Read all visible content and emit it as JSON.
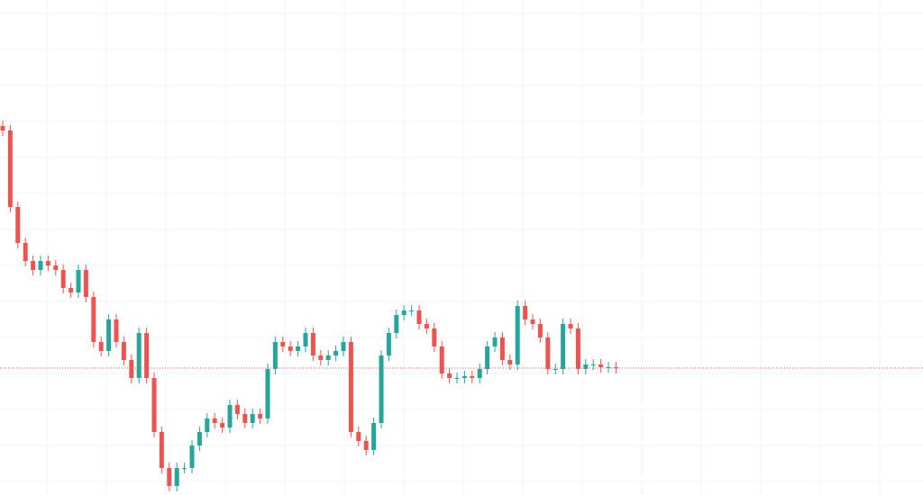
{
  "chart_data": {
    "type": "candlestick",
    "up_color": "#26a69a",
    "down_color": "#ef5350",
    "ylim": [
      0,
      550
    ],
    "open": [
      410,
      405,
      320,
      280,
      260,
      250,
      260,
      255,
      250,
      230,
      225,
      250,
      220,
      170,
      160,
      195,
      170,
      150,
      130,
      180,
      130,
      70,
      30,
      10,
      30,
      30,
      55,
      70,
      85,
      80,
      75,
      100,
      90,
      80,
      90,
      85,
      140,
      170,
      165,
      160,
      165,
      180,
      155,
      150,
      155,
      160,
      170,
      70,
      60,
      50,
      80,
      155,
      180,
      200,
      205,
      205,
      190,
      185,
      165,
      135,
      130,
      130,
      132,
      130,
      140,
      165,
      175,
      150,
      145,
      210,
      195,
      190,
      175,
      140,
      140,
      190,
      185,
      140,
      145,
      145,
      142,
      142
    ],
    "high": [
      416,
      411,
      326,
      286,
      266,
      266,
      266,
      261,
      256,
      236,
      256,
      256,
      226,
      176,
      201,
      201,
      176,
      156,
      186,
      186,
      136,
      76,
      36,
      36,
      36,
      61,
      76,
      91,
      91,
      86,
      106,
      106,
      96,
      96,
      96,
      146,
      176,
      176,
      171,
      171,
      186,
      186,
      161,
      161,
      166,
      176,
      176,
      76,
      66,
      86,
      161,
      186,
      206,
      211,
      211,
      211,
      196,
      191,
      171,
      141,
      136,
      138,
      138,
      146,
      171,
      181,
      181,
      156,
      216,
      216,
      201,
      196,
      181,
      146,
      196,
      196,
      191,
      151,
      151,
      151,
      148,
      148
    ],
    "low": [
      399,
      314,
      274,
      254,
      244,
      244,
      249,
      244,
      224,
      219,
      219,
      214,
      164,
      154,
      154,
      164,
      144,
      124,
      124,
      124,
      64,
      24,
      4,
      4,
      24,
      24,
      49,
      64,
      74,
      69,
      69,
      84,
      74,
      74,
      79,
      79,
      134,
      159,
      154,
      154,
      159,
      149,
      144,
      144,
      149,
      154,
      64,
      54,
      44,
      44,
      74,
      149,
      174,
      194,
      199,
      184,
      179,
      159,
      129,
      124,
      124,
      124,
      124,
      124,
      134,
      159,
      144,
      139,
      139,
      189,
      184,
      169,
      134,
      134,
      134,
      179,
      134,
      134,
      139,
      136,
      136,
      135
    ],
    "close": [
      405,
      320,
      280,
      260,
      250,
      260,
      255,
      250,
      230,
      225,
      250,
      220,
      170,
      160,
      195,
      170,
      150,
      130,
      180,
      130,
      70,
      30,
      10,
      30,
      30,
      55,
      70,
      85,
      80,
      75,
      100,
      90,
      80,
      90,
      85,
      140,
      170,
      165,
      160,
      165,
      180,
      155,
      150,
      155,
      160,
      170,
      70,
      60,
      50,
      80,
      155,
      180,
      200,
      205,
      205,
      190,
      185,
      165,
      135,
      130,
      130,
      132,
      130,
      140,
      165,
      175,
      150,
      145,
      210,
      195,
      190,
      175,
      140,
      140,
      190,
      185,
      140,
      145,
      145,
      142,
      142,
      141
    ]
  }
}
